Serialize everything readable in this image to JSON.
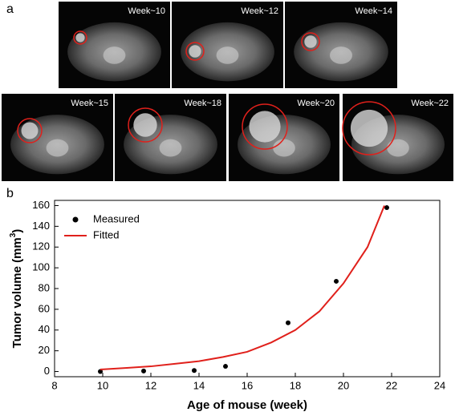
{
  "panels": {
    "a": "a",
    "b": "b"
  },
  "images": [
    {
      "label": "Week~10"
    },
    {
      "label": "Week~12"
    },
    {
      "label": "Week~14"
    },
    {
      "label": "Week~15"
    },
    {
      "label": "Week~18"
    },
    {
      "label": "Week~20"
    },
    {
      "label": "Week~22"
    }
  ],
  "chart_data": {
    "type": "scatter",
    "xlabel": "Age of mouse (week)",
    "ylabel": {
      "text": "Tumor volume (mm",
      "sup": "3",
      "tail": ")"
    },
    "xlim": [
      8,
      24
    ],
    "xticks": [
      8,
      10,
      12,
      14,
      16,
      18,
      20,
      22,
      24
    ],
    "ylim": [
      -5,
      165
    ],
    "yticks": [
      0,
      20,
      40,
      60,
      80,
      100,
      120,
      140,
      160
    ],
    "legend": "top-left",
    "series": [
      {
        "name": "Measured",
        "color": "#000000",
        "kind": "points",
        "x": [
          9.9,
          11.7,
          13.8,
          15.1,
          17.7,
          19.7,
          21.8
        ],
        "y": [
          0,
          0.5,
          1,
          5,
          47,
          87,
          158
        ]
      },
      {
        "name": "Fitted",
        "color": "#e0201b",
        "kind": "line",
        "x": [
          9.9,
          11,
          12,
          13,
          14,
          15,
          16,
          17,
          18,
          19,
          20,
          21,
          21.7
        ],
        "y": [
          2,
          3.5,
          5,
          7.5,
          10,
          14,
          19,
          28,
          40,
          58,
          85,
          120,
          160
        ]
      }
    ]
  }
}
